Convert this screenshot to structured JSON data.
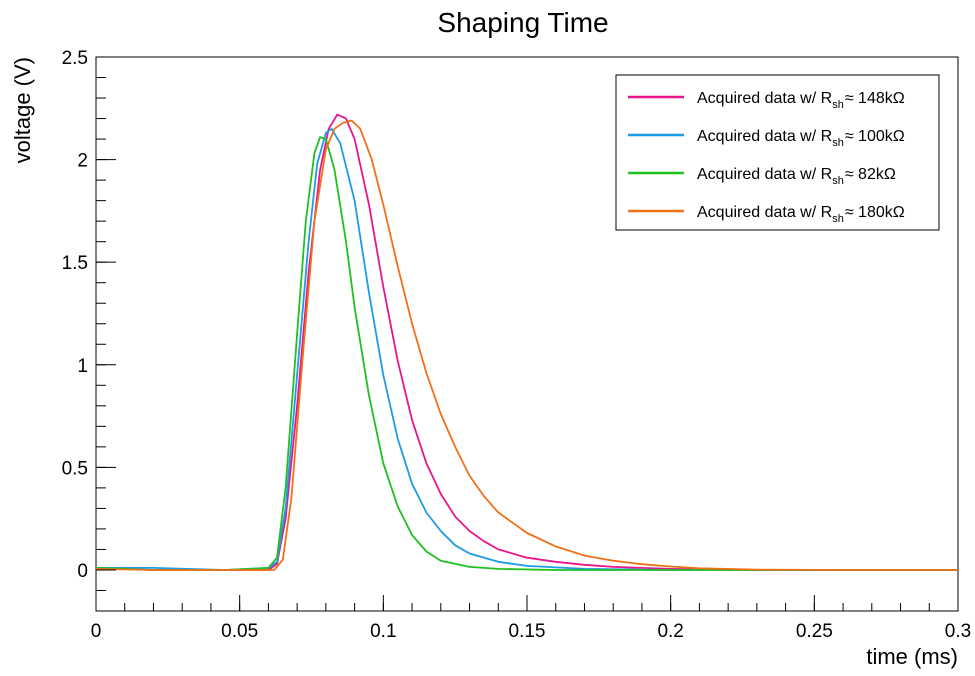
{
  "chart_data": {
    "type": "line",
    "title": "Shaping Time",
    "xlabel": "time (ms)",
    "ylabel": "voltage (V)",
    "xlim": [
      0,
      0.3
    ],
    "ylim": [
      -0.2,
      2.5
    ],
    "grid": false,
    "legend_position": "top-right",
    "x_ticks": [
      {
        "value": 0,
        "label": "0"
      },
      {
        "value": 0.05,
        "label": "0.05"
      },
      {
        "value": 0.1,
        "label": "0.1"
      },
      {
        "value": 0.15,
        "label": "0.15"
      },
      {
        "value": 0.2,
        "label": "0.2"
      },
      {
        "value": 0.25,
        "label": "0.25"
      },
      {
        "value": 0.3,
        "label": "0.3"
      }
    ],
    "y_ticks": [
      {
        "value": 0,
        "label": "0"
      },
      {
        "value": 0.5,
        "label": "0.5"
      },
      {
        "value": 1,
        "label": "1"
      },
      {
        "value": 1.5,
        "label": "1.5"
      },
      {
        "value": 2,
        "label": "2"
      },
      {
        "value": 2.5,
        "label": "2.5"
      }
    ],
    "series": [
      {
        "legend": {
          "prefix": "Acquired data w/ R",
          "sub": "sh",
          "suffix": "≈ 148kΩ"
        },
        "color": "#e8168c",
        "points": [
          [
            0,
            0.01
          ],
          [
            0.02,
            0
          ],
          [
            0.045,
            0
          ],
          [
            0.06,
            0
          ],
          [
            0.063,
            0.03
          ],
          [
            0.066,
            0.25
          ],
          [
            0.07,
            0.8
          ],
          [
            0.074,
            1.45
          ],
          [
            0.078,
            1.95
          ],
          [
            0.081,
            2.15
          ],
          [
            0.084,
            2.22
          ],
          [
            0.087,
            2.2
          ],
          [
            0.09,
            2.1
          ],
          [
            0.095,
            1.78
          ],
          [
            0.1,
            1.38
          ],
          [
            0.105,
            1.02
          ],
          [
            0.11,
            0.73
          ],
          [
            0.115,
            0.52
          ],
          [
            0.12,
            0.37
          ],
          [
            0.125,
            0.26
          ],
          [
            0.13,
            0.19
          ],
          [
            0.135,
            0.14
          ],
          [
            0.14,
            0.1
          ],
          [
            0.15,
            0.06
          ],
          [
            0.16,
            0.04
          ],
          [
            0.17,
            0.025
          ],
          [
            0.18,
            0.015
          ],
          [
            0.2,
            0.005
          ],
          [
            0.23,
            0
          ],
          [
            0.3,
            0
          ]
        ]
      },
      {
        "legend": {
          "prefix": "Acquired data w/ R",
          "sub": "sh",
          "suffix": "≈ 100kΩ"
        },
        "color": "#1e9be6",
        "points": [
          [
            0,
            0.01
          ],
          [
            0.02,
            0.01
          ],
          [
            0.045,
            0
          ],
          [
            0.06,
            0.01
          ],
          [
            0.063,
            0.04
          ],
          [
            0.066,
            0.3
          ],
          [
            0.07,
            0.95
          ],
          [
            0.074,
            1.6
          ],
          [
            0.077,
            1.98
          ],
          [
            0.08,
            2.13
          ],
          [
            0.082,
            2.15
          ],
          [
            0.085,
            2.08
          ],
          [
            0.09,
            1.8
          ],
          [
            0.095,
            1.35
          ],
          [
            0.1,
            0.95
          ],
          [
            0.105,
            0.64
          ],
          [
            0.11,
            0.42
          ],
          [
            0.115,
            0.28
          ],
          [
            0.12,
            0.19
          ],
          [
            0.125,
            0.12
          ],
          [
            0.13,
            0.08
          ],
          [
            0.14,
            0.04
          ],
          [
            0.15,
            0.02
          ],
          [
            0.17,
            0.005
          ],
          [
            0.2,
            0
          ],
          [
            0.3,
            0
          ]
        ]
      },
      {
        "legend": {
          "prefix": "Acquired data w/ R",
          "sub": "sh",
          "suffix": "≈ 82kΩ"
        },
        "color": "#20c020",
        "points": [
          [
            0,
            0.01
          ],
          [
            0.02,
            0
          ],
          [
            0.045,
            0
          ],
          [
            0.06,
            0.01
          ],
          [
            0.063,
            0.06
          ],
          [
            0.066,
            0.4
          ],
          [
            0.07,
            1.15
          ],
          [
            0.073,
            1.7
          ],
          [
            0.076,
            2.03
          ],
          [
            0.078,
            2.11
          ],
          [
            0.08,
            2.1
          ],
          [
            0.083,
            1.95
          ],
          [
            0.087,
            1.6
          ],
          [
            0.09,
            1.28
          ],
          [
            0.095,
            0.85
          ],
          [
            0.1,
            0.52
          ],
          [
            0.105,
            0.31
          ],
          [
            0.11,
            0.17
          ],
          [
            0.115,
            0.09
          ],
          [
            0.12,
            0.045
          ],
          [
            0.13,
            0.015
          ],
          [
            0.14,
            0.005
          ],
          [
            0.16,
            0
          ],
          [
            0.3,
            0
          ]
        ]
      },
      {
        "legend": {
          "prefix": "Acquired data w/ R",
          "sub": "sh",
          "suffix": "≈ 180kΩ"
        },
        "color": "#f07018",
        "points": [
          [
            0,
            0.005
          ],
          [
            0.02,
            0
          ],
          [
            0.045,
            0
          ],
          [
            0.062,
            0
          ],
          [
            0.065,
            0.05
          ],
          [
            0.068,
            0.35
          ],
          [
            0.072,
            1.05
          ],
          [
            0.076,
            1.7
          ],
          [
            0.08,
            2.05
          ],
          [
            0.083,
            2.15
          ],
          [
            0.086,
            2.18
          ],
          [
            0.089,
            2.19
          ],
          [
            0.092,
            2.15
          ],
          [
            0.096,
            2.0
          ],
          [
            0.1,
            1.78
          ],
          [
            0.105,
            1.48
          ],
          [
            0.11,
            1.2
          ],
          [
            0.115,
            0.96
          ],
          [
            0.12,
            0.76
          ],
          [
            0.125,
            0.6
          ],
          [
            0.13,
            0.46
          ],
          [
            0.135,
            0.36
          ],
          [
            0.14,
            0.28
          ],
          [
            0.15,
            0.18
          ],
          [
            0.16,
            0.115
          ],
          [
            0.17,
            0.07
          ],
          [
            0.18,
            0.045
          ],
          [
            0.19,
            0.028
          ],
          [
            0.2,
            0.017
          ],
          [
            0.21,
            0.008
          ],
          [
            0.23,
            0.002
          ],
          [
            0.26,
            0
          ],
          [
            0.3,
            0
          ]
        ]
      }
    ]
  }
}
